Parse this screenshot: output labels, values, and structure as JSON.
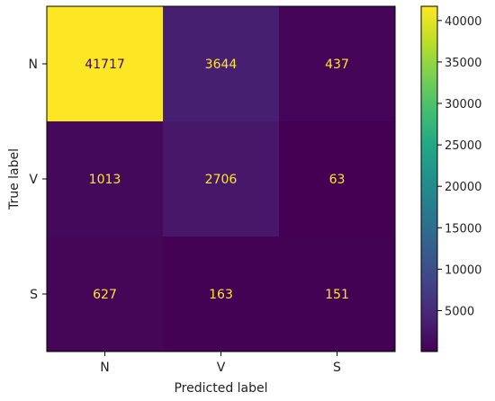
{
  "chart_data": {
    "type": "heatmap",
    "title": "",
    "xlabel": "Predicted label",
    "ylabel": "True label",
    "x_categories": [
      "N",
      "V",
      "S"
    ],
    "y_categories": [
      "N",
      "V",
      "S"
    ],
    "values": [
      [
        41717,
        3644,
        437
      ],
      [
        1013,
        2706,
        63
      ],
      [
        627,
        163,
        151
      ]
    ],
    "colormap": "viridis",
    "colorbar_range": [
      63,
      41717
    ],
    "colorbar_ticks": [
      5000,
      10000,
      15000,
      20000,
      25000,
      30000,
      35000,
      40000
    ],
    "colorbar_tick_labels": [
      "5000",
      "10000",
      "15000",
      "20000",
      "25000",
      "30000",
      "35000",
      "40000"
    ],
    "text_color_on_dark": "#fde725",
    "text_color_on_light": "#440154"
  }
}
